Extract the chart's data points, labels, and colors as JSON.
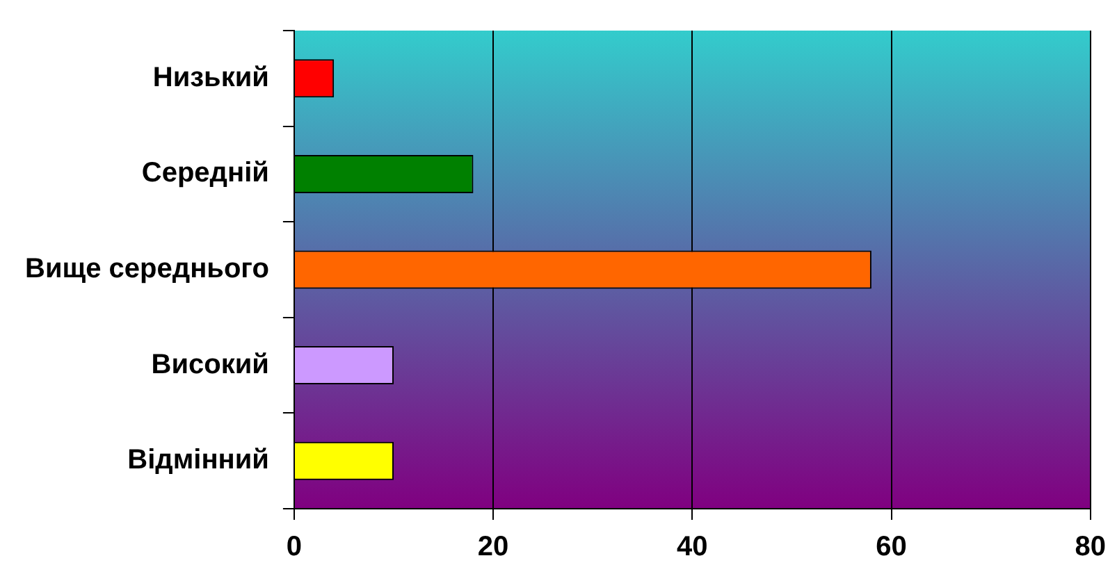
{
  "chart_data": {
    "type": "bar",
    "orientation": "horizontal",
    "categories": [
      "Низький",
      "Середній",
      "Вище середнього",
      "Високий",
      "Відмінний"
    ],
    "values": [
      4,
      18,
      58,
      10,
      10
    ],
    "colors": [
      "#ff0000",
      "#008000",
      "#ff6600",
      "#cc99ff",
      "#ffff00"
    ],
    "xlim": [
      0,
      80
    ],
    "xticks": [
      0,
      20,
      40,
      60,
      80
    ],
    "grid": "x",
    "legend": false
  }
}
